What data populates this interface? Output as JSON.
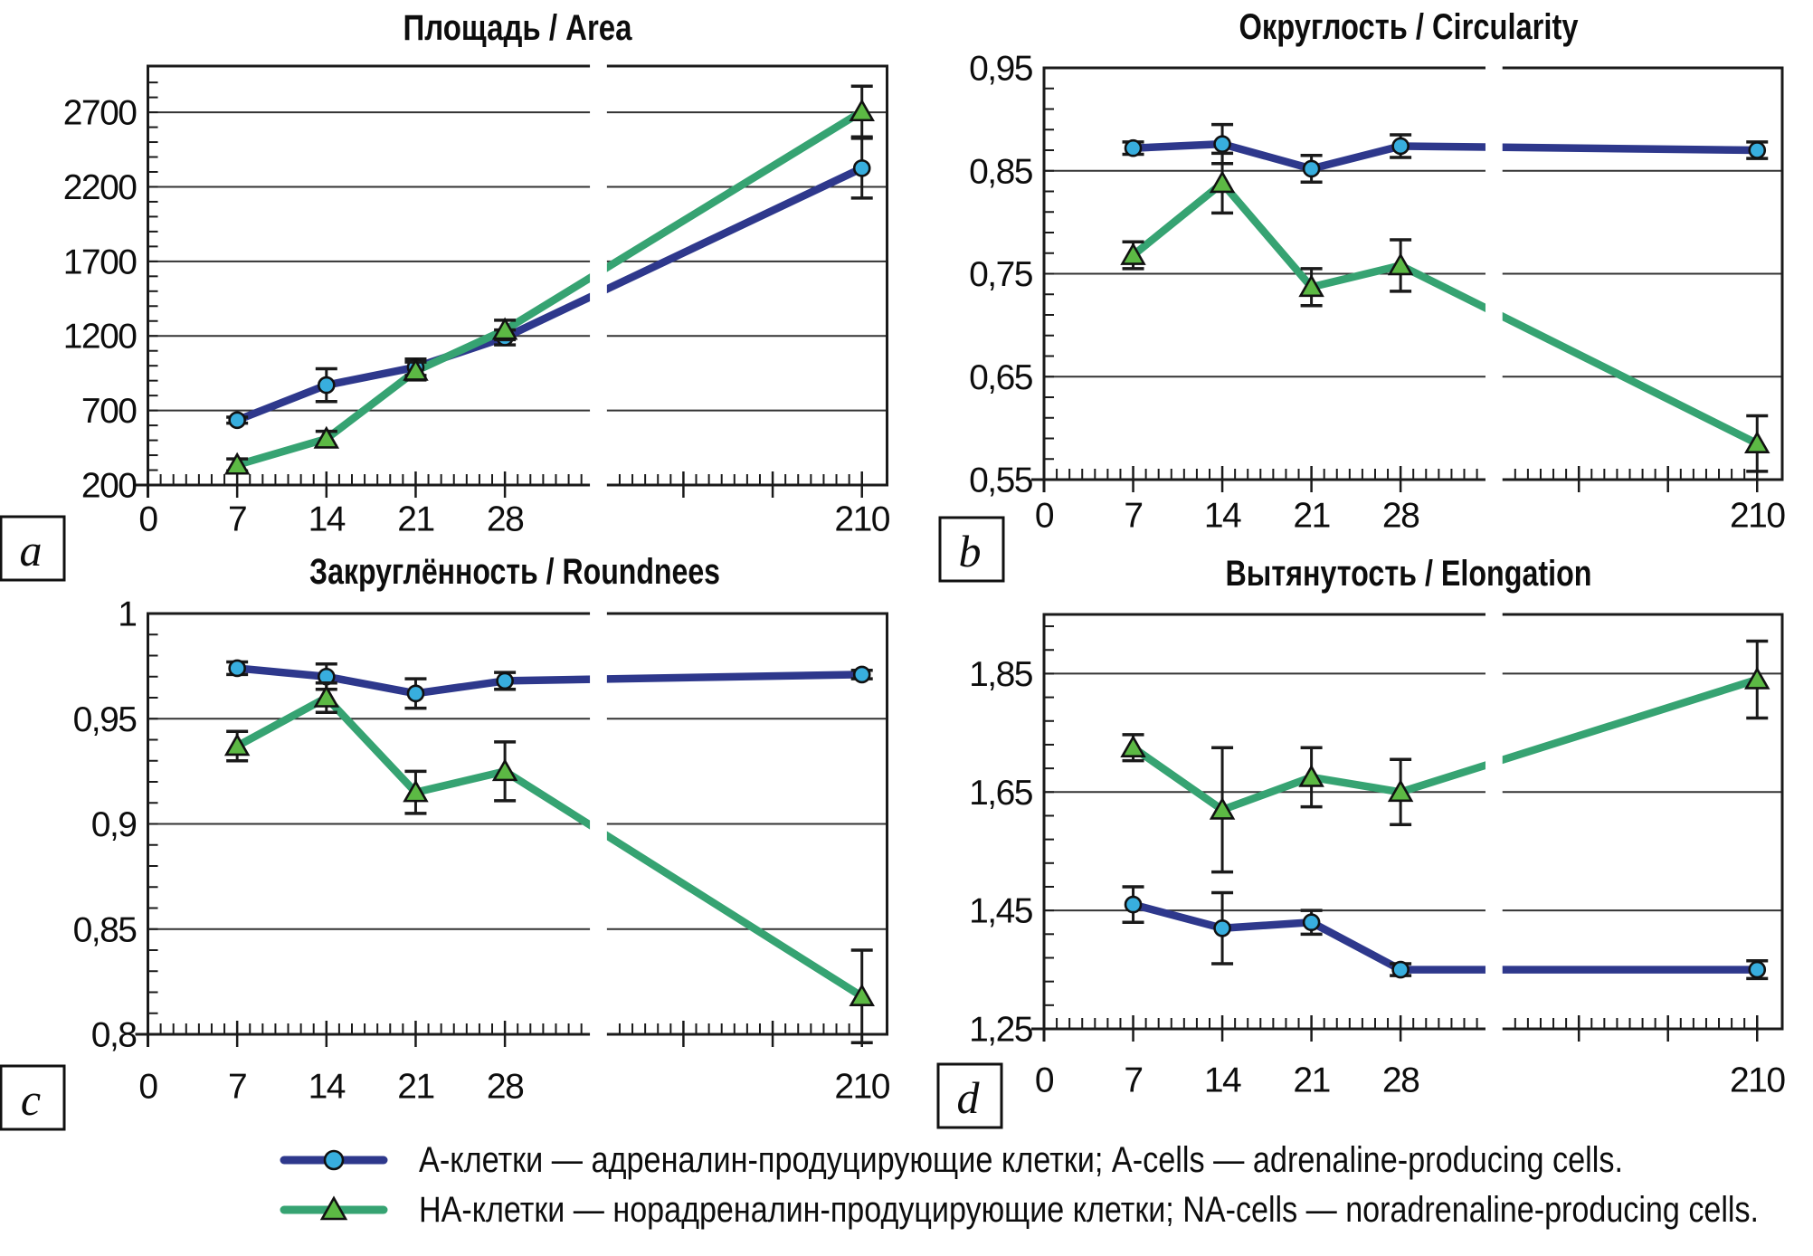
{
  "figure": {
    "background": "#ffffff"
  },
  "colors": {
    "a_cells_line": "#2e388c",
    "a_cells_marker_fill": "#38aede",
    "na_cells_line": "#36a372",
    "na_cells_marker_fill": "#5cb944",
    "marker_stroke": "#111111",
    "error_bar": "#1a1a1a",
    "grid": "#333333",
    "frame": "#1a1a1a",
    "text": "#0d0d0d"
  },
  "legend": {
    "position": "bottom",
    "items": [
      {
        "series": "A-cells",
        "marker": "circle",
        "label": "А-клетки — адреналин-продуцирующие клетки; A-cells — adrenaline-producing cells."
      },
      {
        "series": "NA-cells",
        "marker": "triangle",
        "label": "НА-клетки — норадреналин-продуцирующие клетки; NA-cells — noradrenaline-producing cells."
      }
    ]
  },
  "chart_data": [
    {
      "id": "a",
      "type": "line",
      "panel_label": "a",
      "title": "Площадь / Area",
      "x": [
        7,
        14,
        21,
        28,
        210
      ],
      "x_axis": {
        "tick_labels": [
          "0",
          "7",
          "14",
          "21",
          "28",
          "210"
        ],
        "break_between": [
          28,
          210
        ],
        "minor_tick_unit": 1
      },
      "y_axis": {
        "tick_labels": [
          "2700",
          "2200",
          "1700",
          "1200",
          "700",
          "200"
        ],
        "tick_values": [
          2700,
          2200,
          1700,
          1200,
          700,
          200
        ],
        "ylim": [
          200,
          3010
        ],
        "grid_step": 500,
        "grid": true
      },
      "series": [
        {
          "name": "A-cells",
          "marker": "circle",
          "values": [
            635,
            870,
            990,
            1190,
            2325
          ],
          "errors": [
            20,
            110,
            55,
            50,
            200
          ]
        },
        {
          "name": "NA-cells",
          "marker": "triangle",
          "values": [
            335,
            510,
            965,
            1240,
            2705
          ],
          "errors": [
            40,
            50,
            60,
            65,
            170
          ]
        }
      ]
    },
    {
      "id": "b",
      "type": "line",
      "panel_label": "b",
      "title": "Округлость / Circularity",
      "x": [
        7,
        14,
        21,
        28,
        210
      ],
      "x_axis": {
        "tick_labels": [
          "0",
          "7",
          "14",
          "21",
          "28",
          "210"
        ],
        "break_between": [
          28,
          210
        ],
        "minor_tick_unit": 1
      },
      "y_axis": {
        "tick_labels": [
          "0,95",
          "0,85",
          "0,75",
          "0,65",
          "0,55"
        ],
        "tick_values": [
          0.95,
          0.85,
          0.75,
          0.65,
          0.55
        ],
        "ylim": [
          0.55,
          0.95
        ],
        "grid_step": 0.1,
        "grid": true
      },
      "series": [
        {
          "name": "A-cells",
          "marker": "circle",
          "values": [
            0.872,
            0.876,
            0.852,
            0.874,
            0.87
          ],
          "errors": [
            0.006,
            0.019,
            0.013,
            0.011,
            0.008
          ]
        },
        {
          "name": "NA-cells",
          "marker": "triangle",
          "values": [
            0.768,
            0.838,
            0.737,
            0.758,
            0.585
          ],
          "errors": [
            0.013,
            0.029,
            0.018,
            0.025,
            0.027
          ]
        }
      ]
    },
    {
      "id": "c",
      "type": "line",
      "panel_label": "c",
      "title": "Закруглённость / Roundnees",
      "x": [
        7,
        14,
        21,
        28,
        210
      ],
      "x_axis": {
        "tick_labels": [
          "0",
          "7",
          "14",
          "21",
          "28",
          "210"
        ],
        "break_between": [
          28,
          210
        ],
        "minor_tick_unit": 1
      },
      "y_axis": {
        "tick_labels": [
          "1",
          "0,95",
          "0,9",
          "0,85",
          "0,8"
        ],
        "tick_values": [
          1,
          0.95,
          0.9,
          0.85,
          0.8
        ],
        "ylim": [
          0.8,
          1.0
        ],
        "grid_step": 0.05,
        "grid": true
      },
      "series": [
        {
          "name": "A-cells",
          "marker": "circle",
          "values": [
            0.974,
            0.97,
            0.962,
            0.968,
            0.971
          ],
          "errors": [
            0.003,
            0.006,
            0.007,
            0.004,
            0.002
          ]
        },
        {
          "name": "NA-cells",
          "marker": "triangle",
          "values": [
            0.937,
            0.96,
            0.915,
            0.925,
            0.818
          ],
          "errors": [
            0.007,
            0.007,
            0.01,
            0.014,
            0.022
          ]
        }
      ]
    },
    {
      "id": "d",
      "type": "line",
      "panel_label": "d",
      "title": "Вытянутость / Elongation",
      "x": [
        7,
        14,
        21,
        28,
        210
      ],
      "x_axis": {
        "tick_labels": [
          "0",
          "7",
          "14",
          "21",
          "28",
          "210"
        ],
        "break_between": [
          28,
          210
        ],
        "minor_tick_unit": 1
      },
      "y_axis": {
        "tick_labels": [
          "1,85",
          "1,65",
          "1,45",
          "1,25"
        ],
        "tick_values": [
          1.85,
          1.65,
          1.45,
          1.25
        ],
        "ylim": [
          1.25,
          1.95
        ],
        "grid_step": 0.2,
        "grid": true
      },
      "series": [
        {
          "name": "A-cells",
          "marker": "circle",
          "values": [
            1.46,
            1.42,
            1.43,
            1.35,
            1.35
          ],
          "errors": [
            0.03,
            0.06,
            0.02,
            0.01,
            0.015
          ]
        },
        {
          "name": "NA-cells",
          "marker": "triangle",
          "values": [
            1.725,
            1.62,
            1.675,
            1.65,
            1.84
          ],
          "errors": [
            0.022,
            0.105,
            0.05,
            0.055,
            0.065
          ]
        }
      ]
    }
  ]
}
